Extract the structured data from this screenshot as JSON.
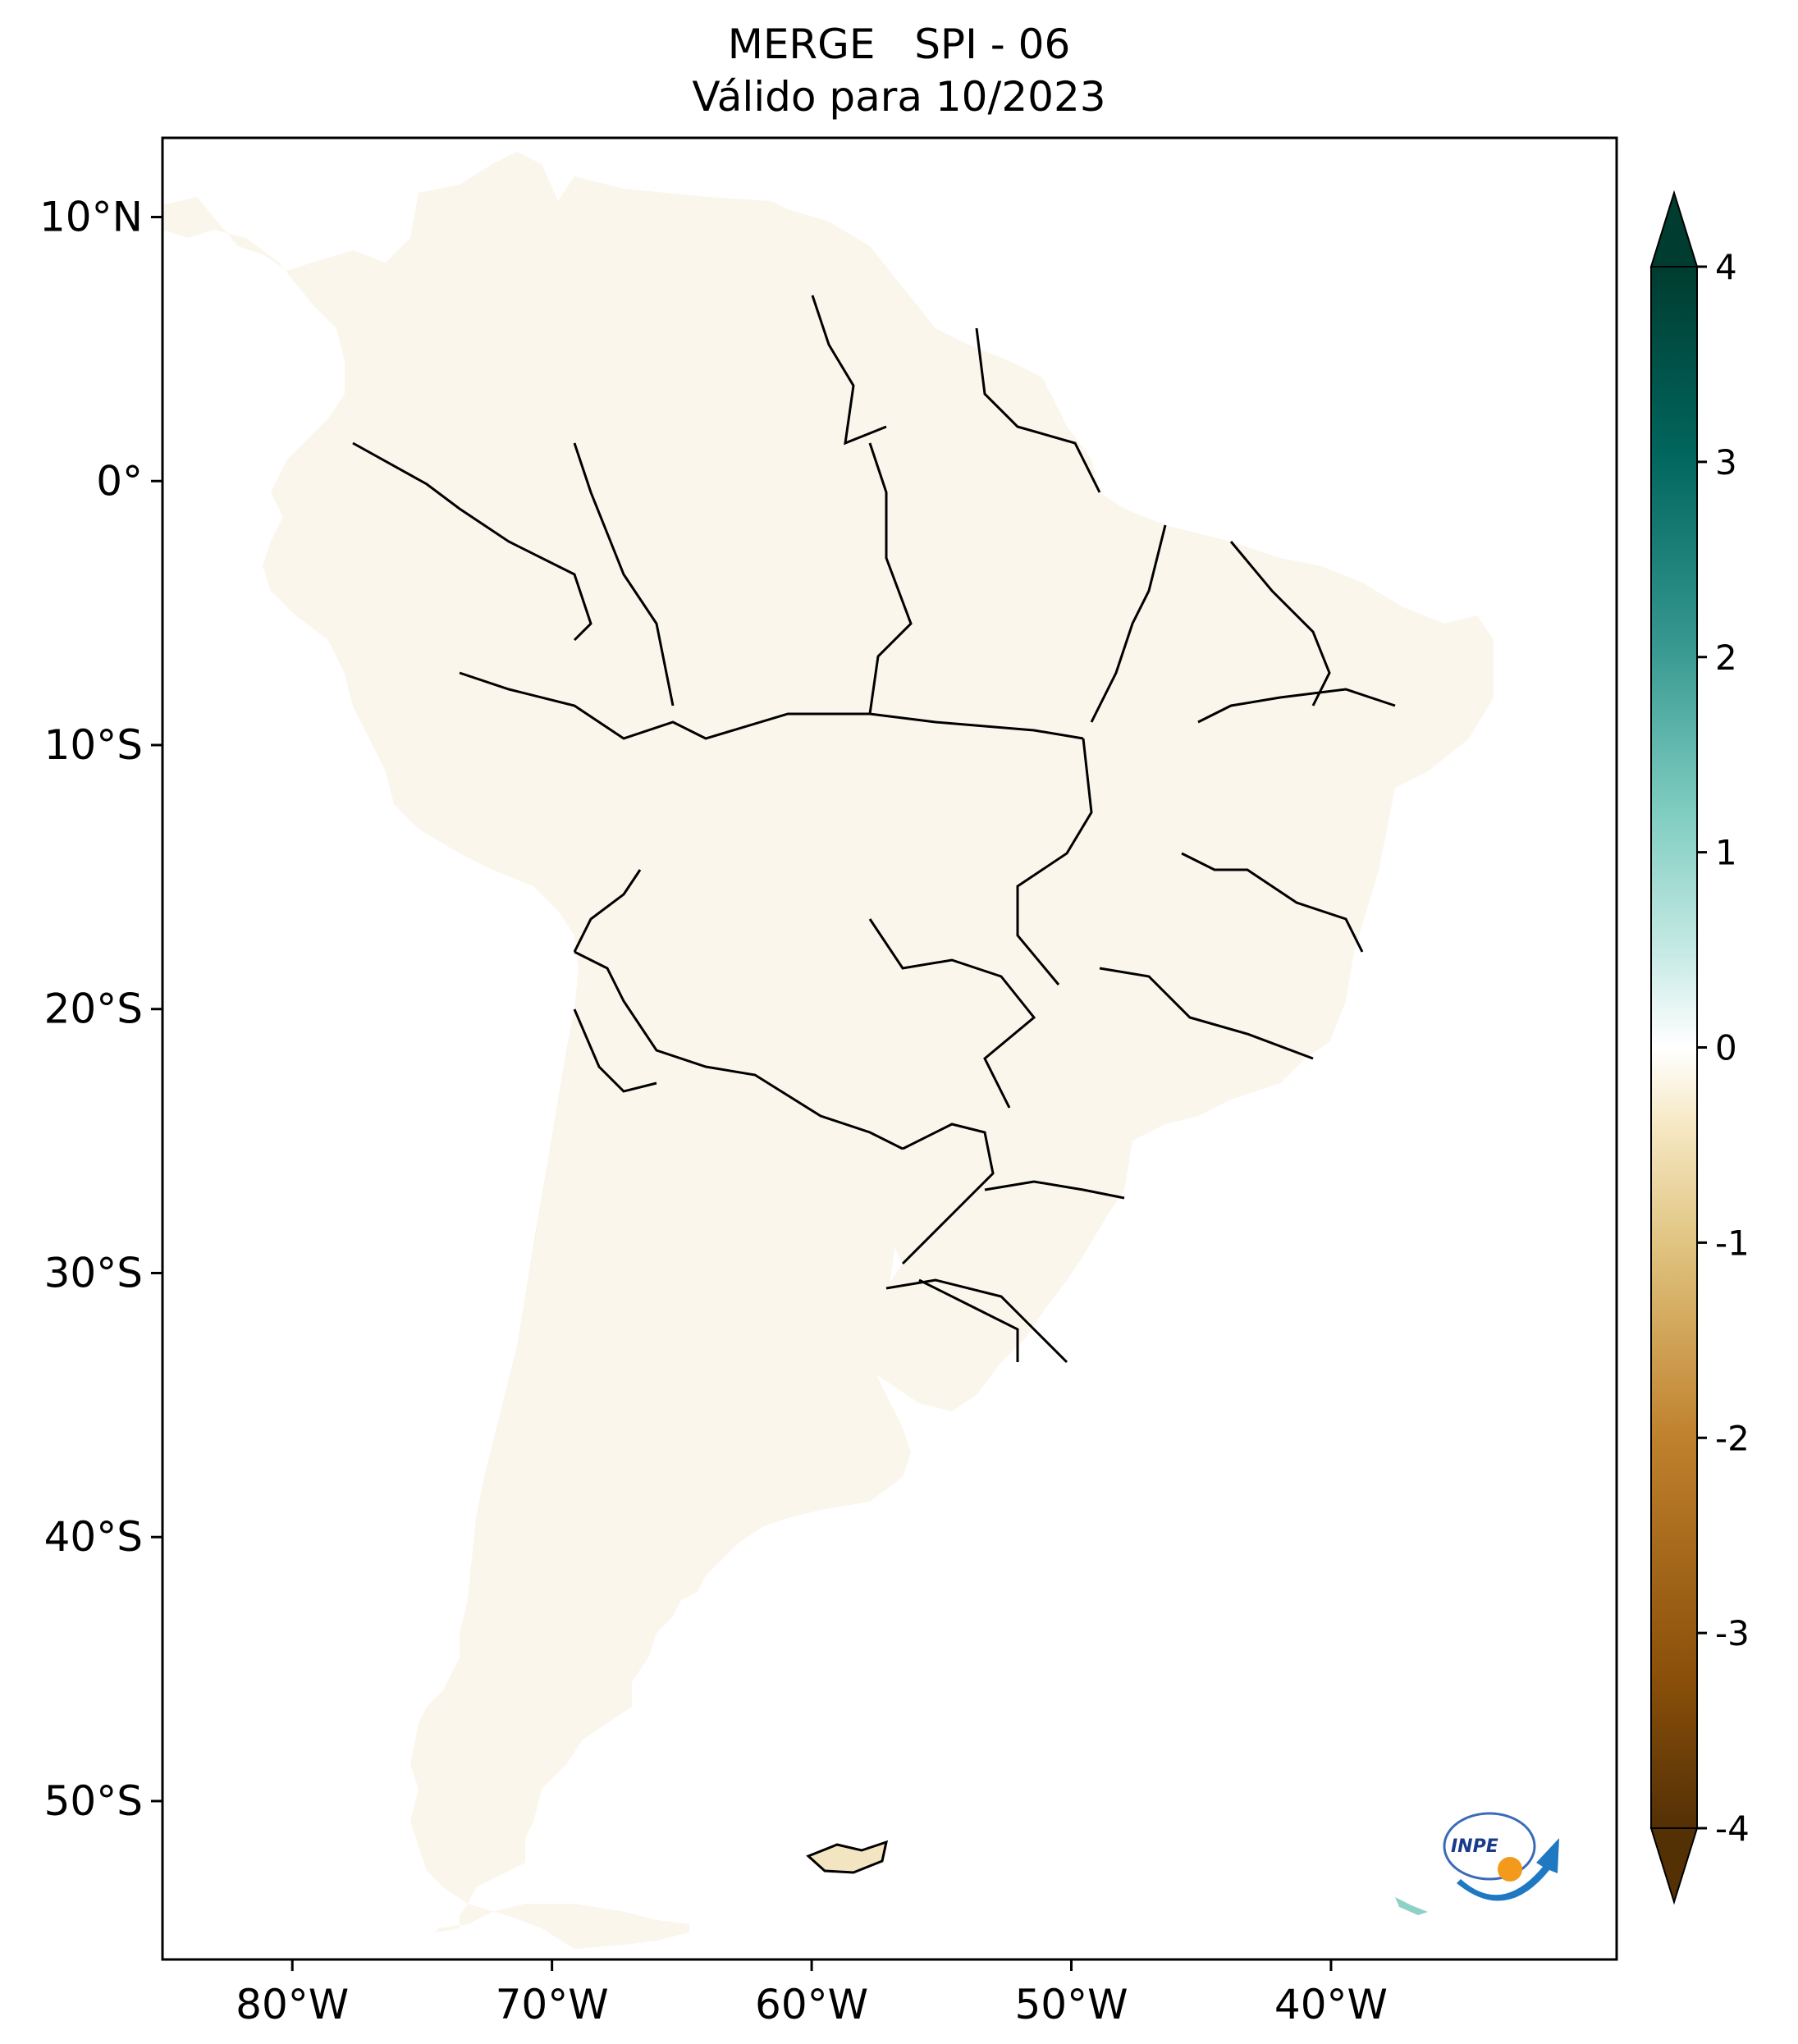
{
  "title": {
    "line1": "MERGE   SPI - 06",
    "line2": "Válido para 10/2023"
  },
  "map": {
    "lon_range": [
      -85,
      -29
    ],
    "lat_range": [
      -56,
      13
    ],
    "x_ticks": [
      {
        "lon": -80,
        "label": "80°W"
      },
      {
        "lon": -70,
        "label": "70°W"
      },
      {
        "lon": -60,
        "label": "60°W"
      },
      {
        "lon": -50,
        "label": "50°W"
      },
      {
        "lon": -40,
        "label": "40°W"
      }
    ],
    "y_ticks": [
      {
        "lat": 10,
        "label": "10°N"
      },
      {
        "lat": 0,
        "label": "0°"
      },
      {
        "lat": -10,
        "label": "10°S"
      },
      {
        "lat": -20,
        "label": "20°S"
      },
      {
        "lat": -30,
        "label": "30°S"
      },
      {
        "lat": -40,
        "label": "40°S"
      },
      {
        "lat": -50,
        "label": "50°S"
      }
    ]
  },
  "colorbar": {
    "min": -4,
    "max": 4,
    "extend": "both",
    "colormap": "BrBG",
    "colors": [
      "#543005",
      "#8c510a",
      "#bf812d",
      "#dfc27d",
      "#f6e8c3",
      "#ffffff",
      "#c7eae5",
      "#80cdc1",
      "#35978f",
      "#01665e",
      "#003c30"
    ],
    "ticks": [
      {
        "value": 4,
        "label": "4"
      },
      {
        "value": 3,
        "label": "3"
      },
      {
        "value": 2,
        "label": "2"
      },
      {
        "value": 1,
        "label": "1"
      },
      {
        "value": 0,
        "label": "0"
      },
      {
        "value": -1,
        "label": "-1"
      },
      {
        "value": -2,
        "label": "-2"
      },
      {
        "value": -3,
        "label": "-3"
      },
      {
        "value": -4,
        "label": "-4"
      }
    ]
  },
  "logo": {
    "text": "INPE"
  }
}
